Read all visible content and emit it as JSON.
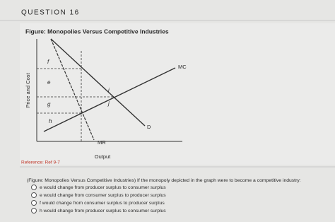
{
  "header": {
    "title": "QUESTION 16"
  },
  "figure": {
    "title": "Figure: Monopolies Versus Competitive Industries",
    "y_axis_label": "Price and Cost",
    "x_axis_label": "Output",
    "curves": {
      "mc": "MC",
      "d": "D",
      "mr": "MR"
    },
    "areas": {
      "f": "f",
      "e": "e",
      "g": "g",
      "h": "h",
      "i": "i",
      "j": "j"
    }
  },
  "reference": "Reference: Ref 9-7",
  "question": {
    "text": "(Figure: Monopolies Versus Competitive Industries) If the monopoly depicted in the graph were to become a competitive industry:",
    "options": [
      "e would change from producer surplus to consumer surplus",
      "e would change from consumer surplus to producer surplus",
      "f would change from consumer surplus to producer surplus",
      "h would change from producer surplus to consumer surplus"
    ]
  }
}
